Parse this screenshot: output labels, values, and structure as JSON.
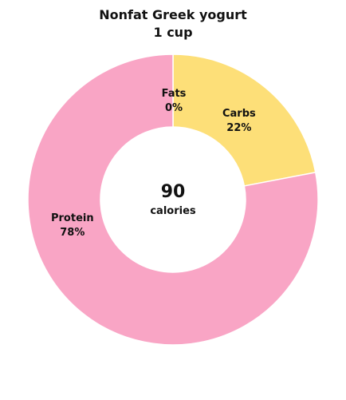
{
  "title_line1": "Nonfat Greek yogurt",
  "title_line2": "1 cup",
  "center": {
    "value": "90",
    "unit": "calories"
  },
  "chart_data": {
    "type": "pie",
    "style": "donut",
    "title": "Nonfat Greek yogurt 1 cup",
    "slices": [
      {
        "label": "Fats",
        "value": 0,
        "display": "0%",
        "color": "#f4a5c4"
      },
      {
        "label": "Carbs",
        "value": 22,
        "display": "22%",
        "color": "#fddf78"
      },
      {
        "label": "Protein",
        "value": 78,
        "display": "78%",
        "color": "#f9a5c5"
      }
    ]
  }
}
